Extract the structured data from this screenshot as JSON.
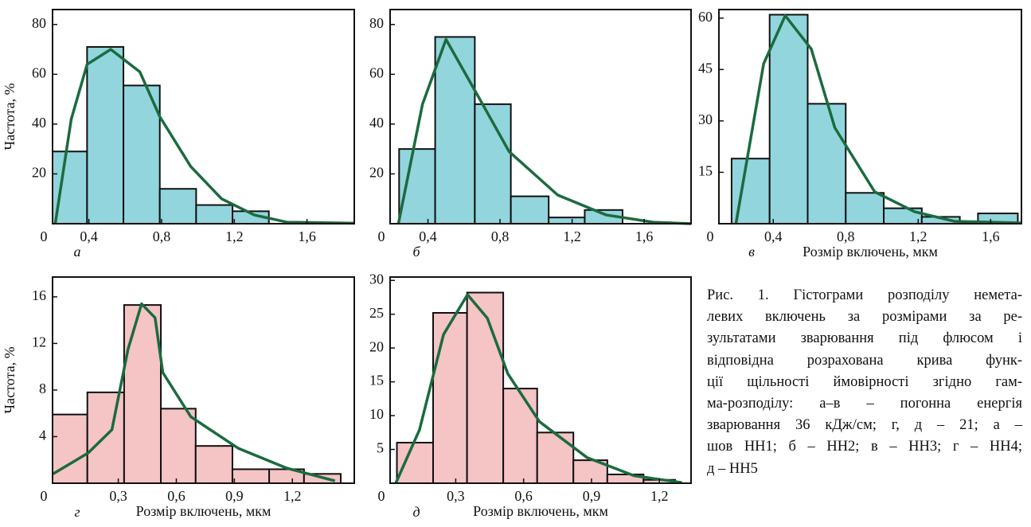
{
  "chart_data": [
    {
      "type": "histogram",
      "panel_label": "а",
      "y_label": "Частота, %",
      "corner_label": "0",
      "bins": [
        0.2,
        0.39,
        0.59,
        0.79,
        0.99,
        1.19,
        1.39
      ],
      "values": [
        29,
        71,
        55.5,
        14,
        7.5,
        5
      ],
      "color": "#92d5dd",
      "curve": {
        "color": "#1b6b3e",
        "x": [
          0.215,
          0.303,
          0.39,
          0.52,
          0.68,
          0.79,
          0.96,
          1.13,
          1.31,
          1.49,
          1.86
        ],
        "y": [
          0,
          42,
          64,
          70,
          61,
          43,
          23,
          10,
          3.5,
          0.6,
          0.2
        ]
      },
      "xlim": [
        0.2,
        1.86
      ],
      "ylim": [
        0,
        86
      ],
      "xticks": [
        {
          "value": 0.4,
          "label": "0,4"
        },
        {
          "value": 0.8,
          "label": "0,8"
        },
        {
          "value": 1.2,
          "label": "1,2"
        },
        {
          "value": 1.6,
          "label": "1,6"
        }
      ],
      "yticks": [
        20,
        40,
        60,
        80
      ]
    },
    {
      "type": "histogram",
      "panel_label": "б",
      "corner_label": "0",
      "bins": [
        0.24,
        0.44,
        0.66,
        0.86,
        1.07,
        1.27,
        1.48
      ],
      "values": [
        30,
        75,
        48,
        11,
        2.5,
        5.5
      ],
      "color": "#92d5dd",
      "curve": {
        "color": "#1b6b3e",
        "x": [
          0.236,
          0.37,
          0.5,
          0.68,
          0.85,
          1.12,
          1.39,
          1.65,
          1.86
        ],
        "y": [
          0,
          48,
          74,
          51,
          29,
          11.5,
          3.5,
          0.6,
          0
        ]
      },
      "xlim": [
        0.19,
        1.86
      ],
      "ylim": [
        0,
        86
      ],
      "xticks": [
        {
          "value": 0.4,
          "label": "0,4"
        },
        {
          "value": 0.8,
          "label": "0,8"
        },
        {
          "value": 1.2,
          "label": "1,2"
        },
        {
          "value": 1.6,
          "label": "1,6"
        }
      ],
      "yticks": [
        20,
        40,
        60,
        80
      ]
    },
    {
      "type": "histogram",
      "panel_label": "в",
      "x_label": "Розмір включень, мкм",
      "corner_label": "0",
      "bins": [
        0.17,
        0.38,
        0.59,
        0.8,
        1.01,
        1.22,
        1.43,
        1.53,
        1.75
      ],
      "values": [
        19,
        61,
        35,
        9,
        4.5,
        2,
        0,
        3
      ],
      "color": "#92d5dd",
      "curve": {
        "color": "#1b6b3e",
        "x": [
          0.194,
          0.347,
          0.466,
          0.61,
          0.74,
          0.96,
          1.18,
          1.4,
          1.77
        ],
        "y": [
          0,
          46.7,
          60.7,
          51,
          28,
          9.3,
          3.5,
          0.7,
          0.2
        ]
      },
      "xlim": [
        0.1,
        1.77
      ],
      "ylim": [
        0,
        62.5
      ],
      "xticks": [
        {
          "value": 0.4,
          "label": "0,4"
        },
        {
          "value": 0.8,
          "label": "0,8"
        },
        {
          "value": 1.2,
          "label": "1,2"
        },
        {
          "value": 1.6,
          "label": "1,6"
        }
      ],
      "yticks": [
        15,
        30,
        45,
        60
      ]
    },
    {
      "type": "histogram",
      "panel_label": "г",
      "y_label": "Частота, %",
      "x_label": "Розмір включень, мкм",
      "corner_label": "0",
      "bins": [
        -0.04,
        0.14,
        0.33,
        0.52,
        0.7,
        0.89,
        1.08,
        1.26,
        1.45
      ],
      "values": [
        5.9,
        7.8,
        15.3,
        6.4,
        3.2,
        1.2,
        1.2,
        0.8
      ],
      "color": "#f5c4c4",
      "curve": {
        "color": "#1b6b3e",
        "x": [
          -0.037,
          0.144,
          0.267,
          0.35,
          0.42,
          0.49,
          0.53,
          0.675,
          0.92,
          1.17,
          1.42
        ],
        "y": [
          0.8,
          2.6,
          4.6,
          11.5,
          15.4,
          14.2,
          9.5,
          5.7,
          3,
          1.3,
          0.2
        ]
      },
      "xlim": [
        -0.04,
        1.52
      ],
      "ylim": [
        0,
        17.7
      ],
      "xticks": [
        {
          "value": 0.3,
          "label": "0,3"
        },
        {
          "value": 0.6,
          "label": "0,6"
        },
        {
          "value": 0.9,
          "label": "0,9"
        },
        {
          "value": 1.2,
          "label": "1,2"
        }
      ],
      "yticks": [
        4,
        8,
        12,
        16
      ]
    },
    {
      "type": "histogram",
      "panel_label": "д",
      "x_label": "Розмір включень, мкм",
      "corner_label": "0",
      "bins": [
        0.04,
        0.2,
        0.35,
        0.51,
        0.66,
        0.82,
        0.97,
        1.13,
        1.27
      ],
      "values": [
        6,
        25.2,
        28.2,
        14,
        7.5,
        3.4,
        1.3,
        0.5
      ],
      "color": "#f5c4c4",
      "curve": {
        "color": "#1b6b3e",
        "x": [
          0.035,
          0.14,
          0.246,
          0.352,
          0.44,
          0.53,
          0.67,
          0.88,
          1.09,
          1.3
        ],
        "y": [
          0,
          7.9,
          22,
          27.9,
          24.4,
          16.2,
          9.1,
          3.8,
          1.1,
          0.1
        ]
      },
      "xlim": [
        0.01,
        1.34
      ],
      "ylim": [
        0,
        30.5
      ],
      "xticks": [
        {
          "value": 0.3,
          "label": "0,3"
        },
        {
          "value": 0.6,
          "label": "0,6"
        },
        {
          "value": 0.9,
          "label": "0,9"
        },
        {
          "value": 1.2,
          "label": "1,2"
        }
      ],
      "yticks": [
        5,
        10,
        15,
        20,
        25,
        30
      ]
    }
  ],
  "caption": [
    "Рис. 1. Гістограми розподілу немета-",
    "левих включень за розмірами за ре-",
    "зультатами зварювання під флюсом і",
    "відповідна розрахована крива функ-",
    "ції щільності ймовірності згідно гам-",
    "ма-розподілу: а–в – погонна енергія",
    "зварювання 36 кДж/см; г, д – 21; а –",
    "шов НН1; б – НН2; в – НН3; г – НН4;",
    "д – НН5"
  ]
}
